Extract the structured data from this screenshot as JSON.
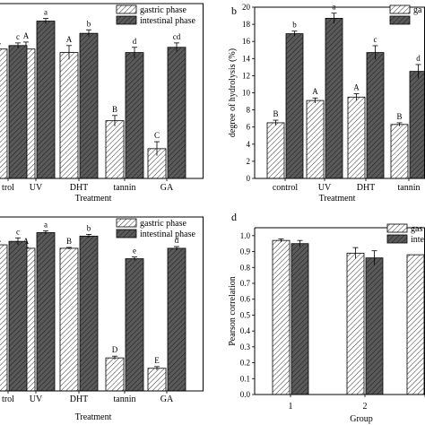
{
  "colors": {
    "gastric_fill": "#ffffff",
    "gastric_hatch": "#333333",
    "intestinal_fill": "#555555",
    "intestinal_hatch": "#2a2a2a",
    "axis": "#000000"
  },
  "chart_data": [
    {
      "type": "bar",
      "panel_label": "",
      "categories": [
        "trol",
        "UV",
        "DHT",
        "tannin",
        "GA"
      ],
      "xlabel": "Treatment",
      "ylabel": "",
      "ylim": [
        0,
        10
      ],
      "series": [
        {
          "name": "gastric phase",
          "values": [
            7.4,
            7.4,
            7.2,
            3.3,
            1.7
          ],
          "err": [
            0.3,
            0.4,
            0.4,
            0.3,
            0.4
          ],
          "letters": [
            "",
            "A",
            "A",
            "B",
            "C"
          ]
        },
        {
          "name": "intestinal phase",
          "values": [
            7.6,
            9.0,
            8.3,
            7.2,
            7.5
          ],
          "err": [
            0.15,
            0.15,
            0.2,
            0.3,
            0.25
          ],
          "letters": [
            "c",
            "a",
            "b",
            "d",
            "cd"
          ]
        }
      ]
    },
    {
      "type": "bar",
      "panel_label": "b",
      "categories": [
        "control",
        "UV",
        "DHT",
        "tannin"
      ],
      "xlabel": "Treatment",
      "ylabel": "degree of hydrolysis (%)",
      "ylim": [
        0,
        20
      ],
      "yticks": [
        0,
        2,
        4,
        6,
        8,
        10,
        12,
        14,
        16,
        18,
        20
      ],
      "series": [
        {
          "name": "ga",
          "values": [
            6.5,
            9.1,
            9.5,
            6.3
          ],
          "err": [
            0.3,
            0.3,
            0.4,
            0.2
          ],
          "letters": [
            "B",
            "A",
            "A",
            "B"
          ]
        },
        {
          "name": "",
          "values": [
            16.9,
            18.7,
            14.7,
            12.5
          ],
          "err": [
            0.3,
            0.6,
            0.8,
            0.8
          ],
          "letters": [
            "b",
            "a",
            "c",
            "d"
          ]
        }
      ]
    },
    {
      "type": "bar",
      "panel_label": "",
      "categories": [
        "trol",
        "UV",
        "DHT",
        "tannin",
        "GA"
      ],
      "xlabel": "Treatment",
      "ylabel": "",
      "ylim": [
        0,
        10
      ],
      "series": [
        {
          "name": "gastric phase",
          "values": [
            8.4,
            8.2,
            8.2,
            1.9,
            1.3
          ],
          "err": [
            0.2,
            0.05,
            0.05,
            0.1,
            0.1
          ],
          "letters": [
            "",
            "A",
            "B",
            "D",
            "E"
          ]
        },
        {
          "name": "intestinal phase",
          "values": [
            8.6,
            9.1,
            8.9,
            7.6,
            8.2
          ],
          "err": [
            0.2,
            0.1,
            0.1,
            0.1,
            0.1
          ],
          "letters": [
            "c",
            "a",
            "b",
            "e",
            "d"
          ]
        }
      ]
    },
    {
      "type": "bar",
      "panel_label": "d",
      "categories": [
        "1",
        "2",
        ""
      ],
      "xlabel": "Group",
      "ylabel": "Pearson correlation",
      "ylim": [
        0,
        1.05
      ],
      "yticks": [
        0.0,
        0.1,
        0.2,
        0.3,
        0.4,
        0.5,
        0.6,
        0.7,
        0.8,
        0.9,
        1.0
      ],
      "series": [
        {
          "name": "gas",
          "values": [
            0.97,
            0.89,
            0.88
          ],
          "err": [
            0.01,
            0.035,
            0
          ],
          "letters": [
            "",
            "",
            ""
          ]
        },
        {
          "name": "inte",
          "values": [
            0.95,
            0.86,
            null
          ],
          "err": [
            0.02,
            0.045,
            0
          ],
          "letters": [
            "",
            "",
            ""
          ]
        }
      ]
    }
  ]
}
